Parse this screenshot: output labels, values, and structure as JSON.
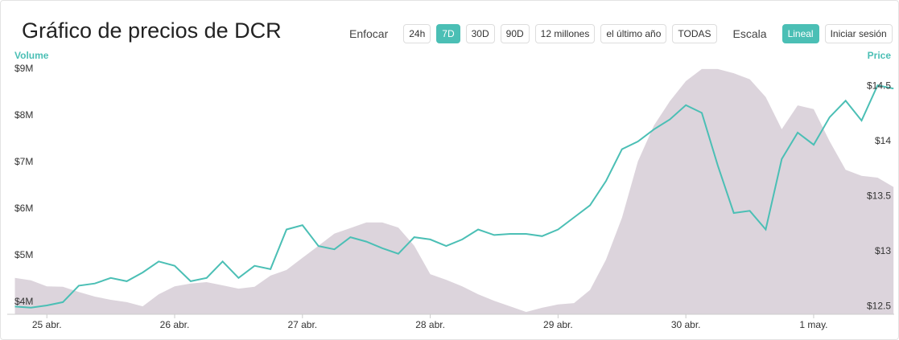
{
  "chart_data": {
    "type": "line",
    "title": "Gráfico de precios de DCR",
    "ylabel": "Volume",
    "y2label": "Price",
    "x": [
      -0.25,
      -0.125,
      0,
      0.125,
      0.25,
      0.375,
      0.5,
      0.625,
      0.75,
      0.875,
      1,
      1.125,
      1.25,
      1.375,
      1.5,
      1.625,
      1.75,
      1.875,
      2,
      2.125,
      2.25,
      2.375,
      2.5,
      2.625,
      2.75,
      2.875,
      3,
      3.125,
      3.25,
      3.375,
      3.5,
      3.625,
      3.75,
      3.875,
      4,
      4.125,
      4.25,
      4.375,
      4.5,
      4.625,
      4.75,
      4.875,
      5,
      5.125,
      5.25,
      5.375,
      5.5,
      5.625,
      5.75,
      5.875,
      6,
      6.125,
      6.25,
      6.375,
      6.5,
      6.625
    ],
    "xlim": [
      -0.31,
      6.63
    ],
    "xticks": [
      {
        "value": 0,
        "label": "25 abr."
      },
      {
        "value": 1,
        "label": "26 abr."
      },
      {
        "value": 2,
        "label": "27 abr."
      },
      {
        "value": 3,
        "label": "28 abr."
      },
      {
        "value": 4,
        "label": "29 abr."
      },
      {
        "value": 5,
        "label": "30 abr."
      },
      {
        "value": 6,
        "label": "1 may."
      }
    ],
    "ylim": [
      3.74,
      9.17
    ],
    "yticks": [
      {
        "value": 4,
        "label": "$4M"
      },
      {
        "value": 5,
        "label": "$5M"
      },
      {
        "value": 6,
        "label": "$6M"
      },
      {
        "value": 7,
        "label": "$7M"
      },
      {
        "value": 8,
        "label": "$8M"
      },
      {
        "value": 9,
        "label": "$9M"
      }
    ],
    "y2lim": [
      12.43,
      14.73
    ],
    "y2ticks": [
      {
        "value": 12.5,
        "label": "$12.5"
      },
      {
        "value": 13,
        "label": "$13"
      },
      {
        "value": 13.5,
        "label": "$13.5"
      },
      {
        "value": 14,
        "label": "$14"
      },
      {
        "value": 14.5,
        "label": "$14.5"
      }
    ],
    "label_color": "#4bbfb5",
    "series": [
      {
        "style": "area",
        "axis": "y",
        "color": "#dcd4dc",
        "values": [
          4.52,
          4.47,
          4.34,
          4.33,
          4.22,
          4.12,
          4.05,
          4.0,
          3.91,
          4.17,
          4.34,
          4.4,
          4.43,
          4.36,
          4.29,
          4.33,
          4.57,
          4.69,
          4.95,
          5.21,
          5.47,
          5.59,
          5.71,
          5.71,
          5.6,
          5.21,
          4.6,
          4.48,
          4.34,
          4.17,
          4.03,
          3.91,
          3.79,
          3.88,
          3.95,
          3.98,
          4.26,
          4.91,
          5.81,
          7.02,
          7.79,
          8.31,
          8.74,
          9.0,
          9.0,
          8.91,
          8.78,
          8.4,
          7.71,
          8.22,
          8.14,
          7.45,
          6.84,
          6.71,
          6.67,
          6.47
        ]
      },
      {
        "style": "line",
        "axis": "y2",
        "color": "#4bbfb5",
        "values": [
          12.5,
          12.49,
          12.51,
          12.54,
          12.69,
          12.71,
          12.76,
          12.73,
          12.81,
          12.91,
          12.87,
          12.73,
          12.76,
          12.91,
          12.76,
          12.87,
          12.84,
          13.2,
          13.24,
          13.05,
          13.02,
          13.13,
          13.09,
          13.03,
          12.98,
          13.13,
          13.11,
          13.05,
          13.11,
          13.2,
          13.15,
          13.16,
          13.16,
          13.14,
          13.2,
          13.31,
          13.42,
          13.64,
          13.93,
          14.0,
          14.11,
          14.2,
          14.33,
          14.26,
          13.78,
          13.35,
          13.37,
          13.2,
          13.84,
          14.08,
          13.97,
          14.22,
          14.37,
          14.19,
          14.51,
          14.48
        ]
      }
    ]
  },
  "toolbar": {
    "zoom_label": "Enfocar",
    "zoom_options": [
      "24h",
      "7D",
      "30D",
      "90D",
      "12 millones",
      "el último año",
      "TODAS"
    ],
    "zoom_active": 1,
    "scale_label": "Escala",
    "scale_options": [
      "Lineal"
    ],
    "scale_active": 0,
    "login": "Iniciar sesión"
  }
}
